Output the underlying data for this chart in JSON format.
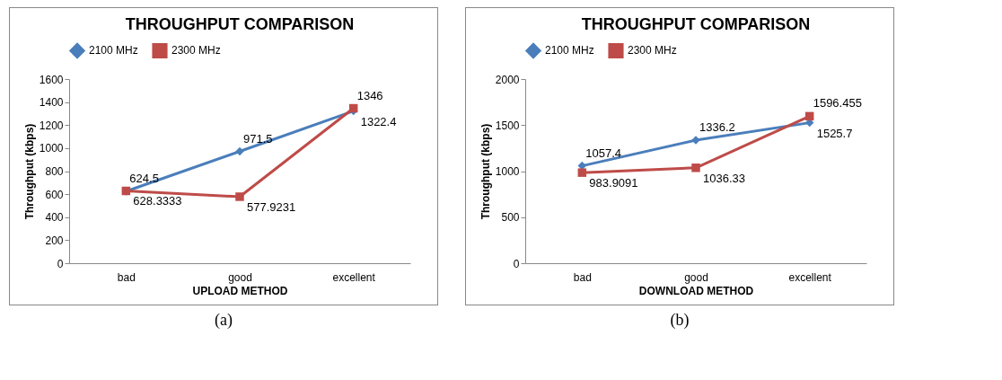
{
  "chart_data": [
    {
      "type": "line",
      "title": "THROUGHPUT COMPARISON",
      "xlabel": "UPLOAD METHOD",
      "ylabel": "Throughput (kbps)",
      "categories": [
        "bad",
        "good",
        "excellent"
      ],
      "series": [
        {
          "name": "2100 MHz",
          "color": "#4a7ebb",
          "marker": "diamond",
          "values": [
            624.5,
            971.5,
            1322.4
          ]
        },
        {
          "name": "2300 MHz",
          "color": "#be4b48",
          "marker": "square",
          "values": [
            628.3333,
            577.9231,
            1346
          ]
        }
      ],
      "ylim": [
        0,
        1600
      ],
      "yticks": [
        0,
        200,
        400,
        600,
        800,
        1000,
        1200,
        1400,
        1600
      ],
      "grid": false,
      "legend": "top",
      "data_labels": true,
      "annotations": [
        "(a)"
      ]
    },
    {
      "type": "line",
      "title": "THROUGHPUT COMPARISON",
      "xlabel": "DOWNLOAD METHOD",
      "ylabel": "Throughput (kbps)",
      "categories": [
        "bad",
        "good",
        "excellent"
      ],
      "series": [
        {
          "name": "2100 MHz",
          "color": "#4a7ebb",
          "marker": "diamond",
          "values": [
            1057.4,
            1336.2,
            1525.7
          ]
        },
        {
          "name": "2300 MHz",
          "color": "#be4b48",
          "marker": "square",
          "values": [
            983.9091,
            1036.33,
            1596.455
          ]
        }
      ],
      "ylim": [
        0,
        2000
      ],
      "yticks": [
        0,
        500,
        1000,
        1500,
        2000
      ],
      "grid": false,
      "legend": "top",
      "data_labels": true,
      "annotations": [
        "(b)"
      ]
    }
  ]
}
